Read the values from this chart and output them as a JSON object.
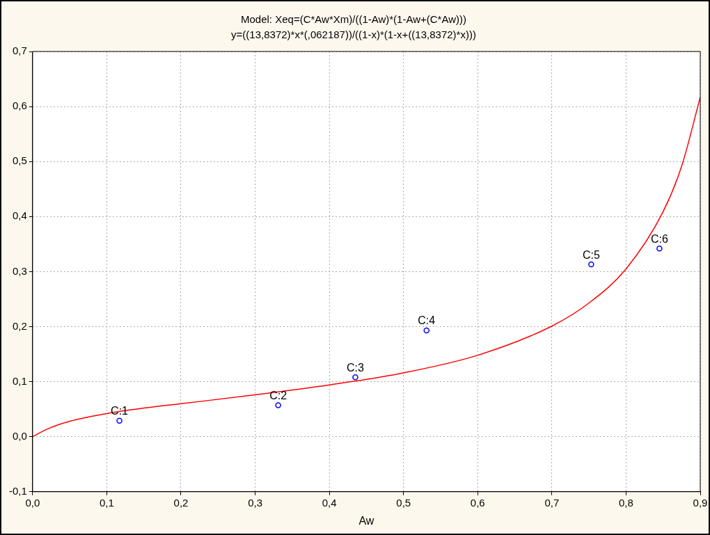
{
  "chart_data": {
    "type": "scatter",
    "title": "Model: Xeq=(C*Aw*Xm)/((1-Aw)*(1-Aw+(C*Aw)))",
    "subtitle": "y=((13,8372)*x*(,062187))/((1-x)*(1-x+((13,8372)*x)))",
    "xlabel": "Aw",
    "series": [
      {
        "type": "scatter",
        "color": "#0000ff",
        "marker": "circle",
        "x": [
          0.117,
          0.331,
          0.435,
          0.531,
          0.753,
          0.845
        ],
        "values": [
          0.029,
          0.057,
          0.108,
          0.193,
          0.313,
          0.342
        ]
      },
      {
        "type": "line",
        "color": "#ff0000",
        "marker": "none",
        "line_style": "solid",
        "x": [
          0,
          0.02,
          0.05,
          0.1,
          0.15,
          0.2,
          0.3,
          0.4,
          0.5,
          0.6,
          0.7,
          0.75,
          0.8,
          0.85,
          0.875,
          0.9
        ],
        "values": [
          0,
          0.014,
          0.028,
          0.042,
          0.052,
          0.06,
          0.076,
          0.094,
          0.116,
          0.148,
          0.201,
          0.243,
          0.305,
          0.409,
          0.492,
          0.617
        ]
      }
    ],
    "annotations": [
      {
        "text": "C:1",
        "x": 0.117,
        "y": 0.029
      },
      {
        "text": "C:2",
        "x": 0.331,
        "y": 0.057
      },
      {
        "text": "C:3",
        "x": 0.435,
        "y": 0.108
      },
      {
        "text": "C:4",
        "x": 0.531,
        "y": 0.193
      },
      {
        "text": "C:5",
        "x": 0.753,
        "y": 0.313
      },
      {
        "text": "C:6",
        "x": 0.845,
        "y": 0.342
      }
    ],
    "xlim": [
      0,
      0.9
    ],
    "xticks": [
      {
        "value": 0,
        "label": "0,0"
      },
      {
        "value": 0.1,
        "label": "0,1"
      },
      {
        "value": 0.2,
        "label": "0,2"
      },
      {
        "value": 0.3,
        "label": "0,3"
      },
      {
        "value": 0.4,
        "label": "0,4"
      },
      {
        "value": 0.5,
        "label": "0,5"
      },
      {
        "value": 0.6,
        "label": "0,6"
      },
      {
        "value": 0.7,
        "label": "0,7"
      },
      {
        "value": 0.8,
        "label": "0,8"
      },
      {
        "value": 0.9,
        "label": "0,9"
      }
    ],
    "ylim": [
      -0.1,
      0.7
    ],
    "yticks": [
      {
        "value": -0.1,
        "label": "-0,1"
      },
      {
        "value": 0,
        "label": "0,0"
      },
      {
        "value": 0.1,
        "label": "0,1"
      },
      {
        "value": 0.2,
        "label": "0,2"
      },
      {
        "value": 0.3,
        "label": "0,3"
      },
      {
        "value": 0.4,
        "label": "0,4"
      },
      {
        "value": 0.5,
        "label": "0,5"
      },
      {
        "value": 0.6,
        "label": "0,6"
      },
      {
        "value": 0.7,
        "label": "0,7"
      }
    ],
    "grid": true,
    "legend": false
  }
}
